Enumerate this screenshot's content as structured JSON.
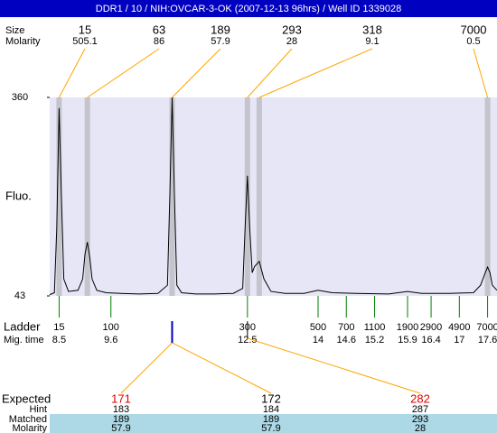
{
  "chart_data": {
    "type": "line",
    "title": "DDR1 / 10 / NIH:OVCAR-3-OK (2007-12-13 96hrs) / Well ID 1339028",
    "y_label": "Fluo.",
    "ylim": [
      43,
      360
    ],
    "yticks": [
      43,
      360
    ],
    "xlim": [
      8.3,
      17.8
    ],
    "color": "#000000",
    "plot_color": "#e6e6f6",
    "x": [
      8.3,
      8.4,
      8.45,
      8.5,
      8.55,
      8.6,
      8.7,
      8.9,
      9.0,
      9.05,
      9.1,
      9.15,
      9.2,
      9.3,
      9.5,
      9.8,
      10.2,
      10.6,
      10.8,
      10.85,
      10.9,
      10.95,
      11.0,
      11.1,
      11.4,
      11.8,
      12.2,
      12.4,
      12.45,
      12.5,
      12.55,
      12.6,
      12.65,
      12.75,
      12.85,
      13.0,
      13.3,
      13.7,
      14.0,
      14.3,
      14.8,
      15.5,
      15.9,
      16.2,
      16.8,
      17.3,
      17.45,
      17.55,
      17.6,
      17.65,
      17.7,
      17.8
    ],
    "values": [
      45,
      48,
      150,
      343,
      200,
      70,
      50,
      52,
      70,
      110,
      129,
      105,
      70,
      52,
      48,
      47,
      46,
      47,
      60,
      200,
      360,
      200,
      60,
      48,
      46,
      46,
      47,
      55,
      150,
      235,
      150,
      80,
      90,
      98,
      70,
      50,
      47,
      47,
      52,
      48,
      47,
      46,
      50,
      47,
      47,
      48,
      60,
      80,
      89,
      80,
      60,
      52
    ],
    "peak_headers": [
      "Size",
      "Molarity"
    ],
    "peaks": [
      {
        "size": 15,
        "molarity": 505.1,
        "time": 8.5
      },
      {
        "size": 63,
        "molarity": 86,
        "time": 9.1
      },
      {
        "size": 189,
        "molarity": 57.9,
        "time": 10.9
      },
      {
        "size": 293,
        "molarity": 28,
        "time": 12.5
      },
      {
        "size": 318,
        "molarity": 9.1,
        "time": 12.75
      },
      {
        "size": 7000,
        "molarity": 0.5,
        "time": 17.6
      }
    ],
    "ladder": {
      "label": "Ladder",
      "time_label": "Mig. time",
      "sizes": [
        15,
        100,
        300,
        500,
        700,
        1100,
        1900,
        2900,
        4900,
        7000
      ],
      "times": [
        8.5,
        9.6,
        12.5,
        14,
        14.6,
        15.2,
        15.9,
        16.4,
        17,
        17.6
      ]
    },
    "expected": {
      "labels": [
        "Expected",
        "Hint",
        "Matched",
        "Molarity"
      ],
      "columns": [
        {
          "expected": 171,
          "hint": 183,
          "matched": 189,
          "molarity": 57.9,
          "color": "#e00000"
        },
        {
          "expected": 172,
          "hint": 184,
          "matched": 189,
          "molarity": 57.9,
          "color": "#000000"
        },
        {
          "expected": 282,
          "hint": 287,
          "matched": 293,
          "molarity": 28,
          "color": "#e00000"
        }
      ]
    }
  }
}
